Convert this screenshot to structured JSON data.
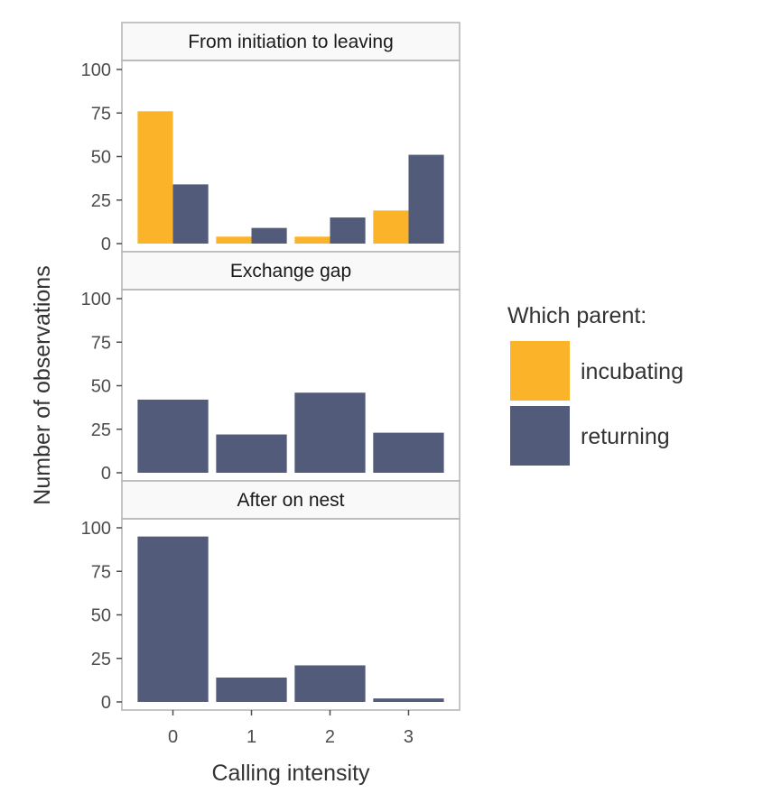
{
  "chart_data": {
    "type": "bar",
    "xlabel": "Calling intensity",
    "ylabel": "Number of observations",
    "categories": [
      "0",
      "1",
      "2",
      "3"
    ],
    "ylim": [
      0,
      100
    ],
    "yticks": [
      0,
      25,
      50,
      75,
      100
    ],
    "legend": {
      "title": "Which parent:",
      "position": "right",
      "entries": [
        {
          "name": "incubating",
          "color": "#FBB32A"
        },
        {
          "name": "returning",
          "color": "#525C7A"
        }
      ]
    },
    "panels": [
      {
        "title": "From initiation to leaving",
        "series": [
          {
            "name": "incubating",
            "values": [
              76,
              4,
              4,
              19
            ]
          },
          {
            "name": "returning",
            "values": [
              34,
              9,
              15,
              51
            ]
          }
        ]
      },
      {
        "title": "Exchange gap",
        "series": [
          {
            "name": "returning",
            "values": [
              42,
              22,
              46,
              23
            ]
          }
        ]
      },
      {
        "title": "After on nest",
        "series": [
          {
            "name": "returning",
            "values": [
              95,
              14,
              21,
              2
            ]
          }
        ]
      }
    ]
  }
}
